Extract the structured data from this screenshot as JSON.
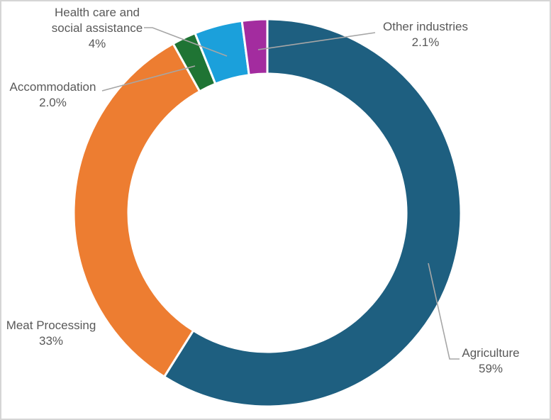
{
  "chart_data": {
    "type": "pie",
    "subtype": "donut",
    "title": "",
    "start_angle_deg": 0,
    "direction": "clockwise",
    "donut_hole_ratio": 0.72,
    "background": "#FFFFFF",
    "border_color": "#D5D5D5",
    "label_color": "#595959",
    "leader_line_color": "#A6A6A6",
    "slices": [
      {
        "name": "Agriculture",
        "value": 59,
        "pct_label": "59%",
        "color": "#1E5F80",
        "label_lines": [
          "Agriculture",
          "59%"
        ]
      },
      {
        "name": "Meat Processing",
        "value": 33,
        "pct_label": "33%",
        "color": "#ED7D31",
        "label_lines": [
          "Meat Processing",
          "33%"
        ]
      },
      {
        "name": "Accommodation",
        "value": 2.0,
        "pct_label": "2.0%",
        "color": "#1F7434",
        "label_lines": [
          "Accommodation",
          "2.0%"
        ]
      },
      {
        "name": "Health care and social assistance",
        "value": 4,
        "pct_label": "4%",
        "color": "#1BA0DB",
        "label_lines": [
          "Health care and",
          "social assistance",
          "4%"
        ]
      },
      {
        "name": "Other industries",
        "value": 2.1,
        "pct_label": "2.1%",
        "color": "#A32C9F",
        "label_lines": [
          "Other industries",
          "2.1%"
        ]
      }
    ]
  }
}
